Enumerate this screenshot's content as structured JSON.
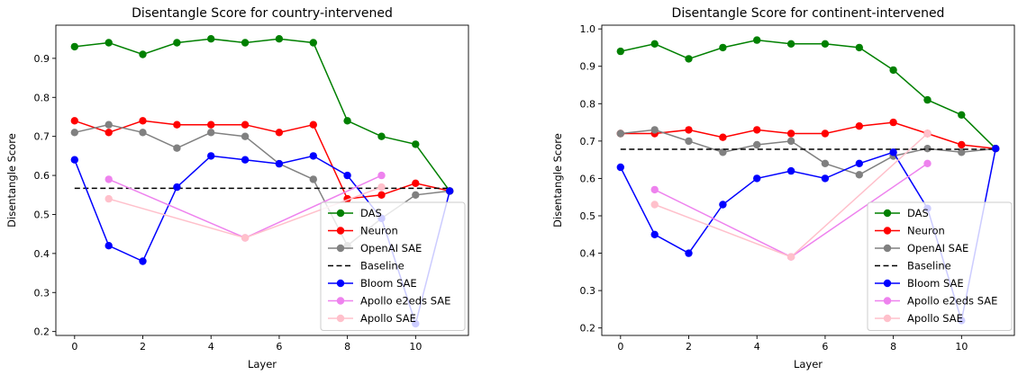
{
  "chart_data": [
    {
      "type": "line",
      "title": "Disentangle Score for country-intervened",
      "xlabel": "Layer",
      "ylabel": "Disentangle Score",
      "xlim": [
        -0.55,
        11.55
      ],
      "ylim": [
        0.19,
        0.985
      ],
      "xticks": [
        0,
        2,
        4,
        6,
        8,
        10
      ],
      "yticks": [
        0.2,
        0.3,
        0.4,
        0.5,
        0.6,
        0.7,
        0.8,
        0.9
      ],
      "grid": false,
      "legend_position": "lower right",
      "series": [
        {
          "name": "DAS",
          "color": "#008000",
          "marker": true,
          "dashed": false,
          "x": [
            0,
            1,
            2,
            3,
            4,
            5,
            6,
            7,
            8,
            9,
            10,
            11
          ],
          "y": [
            0.93,
            0.94,
            0.91,
            0.94,
            0.95,
            0.94,
            0.95,
            0.94,
            0.74,
            0.7,
            0.68,
            0.56
          ]
        },
        {
          "name": "Neuron",
          "color": "#ff0000",
          "marker": true,
          "dashed": false,
          "x": [
            0,
            1,
            2,
            3,
            4,
            5,
            6,
            7,
            8,
            9,
            10,
            11
          ],
          "y": [
            0.74,
            0.71,
            0.74,
            0.73,
            0.73,
            0.73,
            0.71,
            0.73,
            0.54,
            0.55,
            0.58,
            0.56
          ]
        },
        {
          "name": "OpenAI SAE",
          "color": "#808080",
          "marker": true,
          "dashed": false,
          "x": [
            0,
            1,
            2,
            3,
            4,
            5,
            6,
            7,
            8,
            9,
            10,
            11
          ],
          "y": [
            0.71,
            0.73,
            0.71,
            0.67,
            0.71,
            0.7,
            0.63,
            0.59,
            0.42,
            0.49,
            0.55,
            0.56
          ]
        },
        {
          "name": "Baseline",
          "color": "#000000",
          "marker": false,
          "dashed": true,
          "x": [
            0,
            11
          ],
          "y": [
            0.567,
            0.567
          ]
        },
        {
          "name": "Bloom SAE",
          "color": "#0000ff",
          "marker": true,
          "dashed": false,
          "x": [
            0,
            1,
            2,
            3,
            4,
            5,
            6,
            7,
            8,
            9,
            10,
            11
          ],
          "y": [
            0.64,
            0.42,
            0.38,
            0.57,
            0.65,
            0.64,
            0.63,
            0.65,
            0.6,
            0.49,
            0.22,
            0.56
          ]
        },
        {
          "name": "Apollo e2eds SAE",
          "color": "#ee82ee",
          "marker": true,
          "dashed": false,
          "x": [
            1,
            5,
            9
          ],
          "y": [
            0.59,
            0.44,
            0.6
          ]
        },
        {
          "name": "Apollo SAE",
          "color": "#ffc0cb",
          "marker": true,
          "dashed": false,
          "x": [
            1,
            5,
            9
          ],
          "y": [
            0.54,
            0.44,
            0.57
          ]
        }
      ]
    },
    {
      "type": "line",
      "title": "Disentangle Score for continent-intervened",
      "xlabel": "Layer",
      "ylabel": "Disentangle Score",
      "xlim": [
        -0.55,
        11.55
      ],
      "ylim": [
        0.18,
        1.01
      ],
      "xticks": [
        0,
        2,
        4,
        6,
        8,
        10
      ],
      "yticks": [
        0.2,
        0.3,
        0.4,
        0.5,
        0.6,
        0.7,
        0.8,
        0.9,
        1.0
      ],
      "grid": false,
      "legend_position": "lower right",
      "series": [
        {
          "name": "DAS",
          "color": "#008000",
          "marker": true,
          "dashed": false,
          "x": [
            0,
            1,
            2,
            3,
            4,
            5,
            6,
            7,
            8,
            9,
            10,
            11
          ],
          "y": [
            0.94,
            0.96,
            0.92,
            0.95,
            0.97,
            0.96,
            0.96,
            0.95,
            0.89,
            0.81,
            0.77,
            0.68
          ]
        },
        {
          "name": "Neuron",
          "color": "#ff0000",
          "marker": true,
          "dashed": false,
          "x": [
            0,
            1,
            2,
            3,
            4,
            5,
            6,
            7,
            8,
            9,
            10,
            11
          ],
          "y": [
            0.72,
            0.72,
            0.73,
            0.71,
            0.73,
            0.72,
            0.72,
            0.74,
            0.75,
            0.72,
            0.69,
            0.68
          ]
        },
        {
          "name": "OpenAI SAE",
          "color": "#808080",
          "marker": true,
          "dashed": false,
          "x": [
            0,
            1,
            2,
            3,
            4,
            5,
            6,
            7,
            8,
            9,
            10,
            11
          ],
          "y": [
            0.72,
            0.73,
            0.7,
            0.67,
            0.69,
            0.7,
            0.64,
            0.61,
            0.66,
            0.68,
            0.67,
            0.68
          ]
        },
        {
          "name": "Baseline",
          "color": "#000000",
          "marker": false,
          "dashed": true,
          "x": [
            0,
            11
          ],
          "y": [
            0.678,
            0.678
          ]
        },
        {
          "name": "Bloom SAE",
          "color": "#0000ff",
          "marker": true,
          "dashed": false,
          "x": [
            0,
            1,
            2,
            3,
            4,
            5,
            6,
            7,
            8,
            9,
            10,
            11
          ],
          "y": [
            0.63,
            0.45,
            0.4,
            0.53,
            0.6,
            0.62,
            0.6,
            0.64,
            0.67,
            0.52,
            0.22,
            0.68
          ]
        },
        {
          "name": "Apollo e2eds SAE",
          "color": "#ee82ee",
          "marker": true,
          "dashed": false,
          "x": [
            1,
            5,
            9
          ],
          "y": [
            0.57,
            0.39,
            0.64
          ]
        },
        {
          "name": "Apollo SAE",
          "color": "#ffc0cb",
          "marker": true,
          "dashed": false,
          "x": [
            1,
            5,
            9
          ],
          "y": [
            0.53,
            0.39,
            0.72
          ]
        }
      ]
    }
  ]
}
